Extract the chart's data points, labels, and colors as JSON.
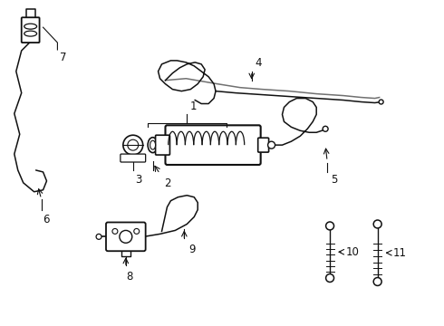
{
  "bg_color": "#ffffff",
  "line_color": "#111111",
  "label_color": "#111111",
  "fig_width": 4.9,
  "fig_height": 3.6,
  "dpi": 100
}
